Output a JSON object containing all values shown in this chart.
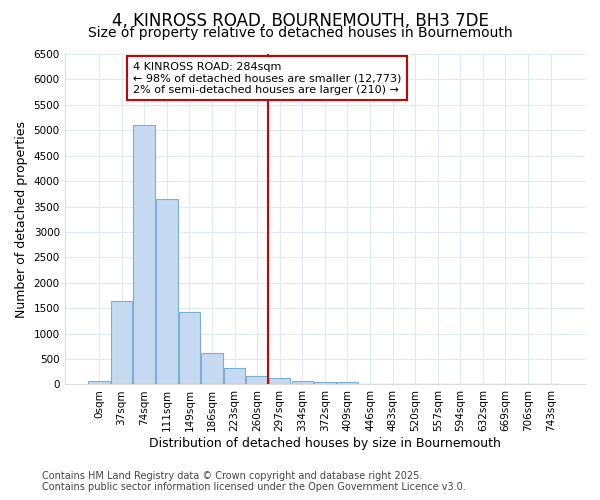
{
  "title": "4, KINROSS ROAD, BOURNEMOUTH, BH3 7DE",
  "subtitle": "Size of property relative to detached houses in Bournemouth",
  "xlabel": "Distribution of detached houses by size in Bournemouth",
  "ylabel": "Number of detached properties",
  "footer_line1": "Contains HM Land Registry data © Crown copyright and database right 2025.",
  "footer_line2": "Contains public sector information licensed under the Open Government Licence v3.0.",
  "categories": [
    "0sqm",
    "37sqm",
    "74sqm",
    "111sqm",
    "149sqm",
    "186sqm",
    "223sqm",
    "260sqm",
    "297sqm",
    "334sqm",
    "372sqm",
    "409sqm",
    "446sqm",
    "483sqm",
    "520sqm",
    "557sqm",
    "594sqm",
    "632sqm",
    "669sqm",
    "706sqm",
    "743sqm"
  ],
  "bar_values": [
    70,
    1650,
    5100,
    3650,
    1430,
    620,
    320,
    160,
    120,
    70,
    50,
    50,
    0,
    0,
    0,
    0,
    0,
    0,
    0,
    0,
    0
  ],
  "bar_color": "#c5d9f0",
  "bar_edge_color": "#7ab0d8",
  "ylim": [
    0,
    6500
  ],
  "yticks": [
    0,
    500,
    1000,
    1500,
    2000,
    2500,
    3000,
    3500,
    4000,
    4500,
    5000,
    5500,
    6000,
    6500
  ],
  "vline_color": "#cc0000",
  "annotation_title": "4 KINROSS ROAD: 284sqm",
  "annotation_line1": "← 98% of detached houses are smaller (12,773)",
  "annotation_line2": "2% of semi-detached houses are larger (210) →",
  "background_color": "#ffffff",
  "plot_bg_color": "#ffffff",
  "grid_color": "#e0e8f0",
  "title_fontsize": 12,
  "subtitle_fontsize": 10,
  "axis_label_fontsize": 9,
  "tick_fontsize": 7.5,
  "annotation_fontsize": 8,
  "footer_fontsize": 7
}
